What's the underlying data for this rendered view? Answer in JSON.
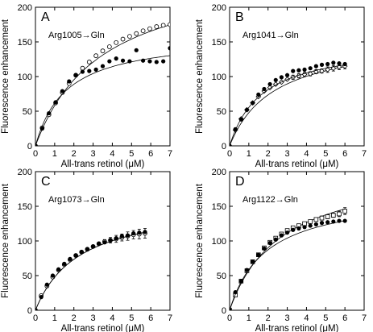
{
  "chart_data": [
    {
      "type": "scatter",
      "panel_letter": "A",
      "mutation_label": "Arg1005→Gln",
      "xlabel": "All-trans retinol (μM)",
      "ylabel": "Fluorescence enhancement",
      "xlim": [
        0,
        7
      ],
      "ylim": [
        0,
        200
      ],
      "xticks": [
        0,
        1,
        2,
        3,
        4,
        5,
        6,
        7
      ],
      "yticks": [
        0,
        50,
        100,
        150,
        200
      ],
      "grid": false,
      "series": [
        {
          "marker": "open-circle",
          "x": [
            0,
            0.35,
            0.7,
            1.05,
            1.4,
            1.75,
            2.1,
            2.45,
            2.8,
            3.15,
            3.5,
            3.85,
            4.2,
            4.55,
            4.9,
            5.25,
            5.6,
            5.95,
            6.3,
            6.65,
            7.0
          ],
          "y": [
            0,
            26,
            45,
            62,
            77,
            90,
            102,
            112,
            121,
            130,
            137,
            143,
            149,
            154,
            158,
            162,
            166,
            169,
            172,
            174,
            175
          ],
          "fit": {
            "type": "hyperbolic",
            "bmax": 262,
            "kd": 3.5
          }
        },
        {
          "marker": "filled-circle",
          "x": [
            0,
            0.35,
            0.7,
            1.05,
            1.4,
            1.75,
            2.1,
            2.45,
            2.8,
            3.15,
            3.5,
            3.85,
            4.2,
            4.55,
            4.9,
            5.25,
            5.6,
            5.95,
            6.3,
            6.65,
            7.0
          ],
          "y": [
            0,
            25,
            47,
            63,
            79,
            93,
            102,
            107,
            108,
            110,
            115,
            122,
            126,
            123,
            122,
            138,
            123,
            122,
            121,
            122,
            141
          ],
          "fit": {
            "type": "hyperbolic",
            "bmax": 160,
            "kd": 1.6
          }
        }
      ]
    },
    {
      "type": "scatter",
      "panel_letter": "B",
      "mutation_label": "Arg1041→Gln",
      "xlabel": "All-trans retinol (μM)",
      "ylabel": "Fluorescence enhancement",
      "xlim": [
        0,
        7
      ],
      "ylim": [
        0,
        200
      ],
      "xticks": [
        0,
        1,
        2,
        3,
        4,
        5,
        6,
        7
      ],
      "yticks": [
        0,
        50,
        100,
        150,
        200
      ],
      "grid": false,
      "series": [
        {
          "marker": "open-diamond",
          "x": [
            0,
            0.3,
            0.6,
            0.9,
            1.2,
            1.5,
            1.8,
            2.1,
            2.4,
            2.7,
            3.0,
            3.3,
            3.6,
            3.9,
            4.2,
            4.5,
            4.8,
            5.1,
            5.4,
            5.7,
            6.0
          ],
          "y": [
            0,
            23,
            39,
            52,
            62,
            71,
            79,
            84,
            89,
            92,
            96,
            99,
            101,
            103,
            104,
            107,
            108,
            110,
            112,
            114,
            115
          ],
          "error": [
            0,
            0,
            0,
            0,
            0,
            0,
            0,
            0,
            0,
            0,
            0,
            3,
            3,
            3,
            3,
            3,
            3,
            4,
            4,
            4,
            4
          ],
          "fit": {
            "type": "hyperbolic",
            "bmax": 158,
            "kd": 2.3
          }
        },
        {
          "marker": "filled-circle",
          "x": [
            0,
            0.3,
            0.6,
            0.9,
            1.2,
            1.5,
            1.8,
            2.1,
            2.4,
            2.7,
            3.0,
            3.3,
            3.6,
            3.9,
            4.2,
            4.5,
            4.8,
            5.1,
            5.4,
            5.7,
            6.0
          ],
          "y": [
            0,
            24,
            38,
            52,
            62,
            74,
            82,
            89,
            95,
            99,
            102,
            108,
            109,
            110,
            112,
            115,
            117,
            118,
            120,
            119,
            118
          ],
          "fit": {
            "type": "hyperbolic",
            "bmax": 150,
            "kd": 1.7
          }
        }
      ]
    },
    {
      "type": "scatter",
      "panel_letter": "C",
      "mutation_label": "Arg1073→Gln",
      "xlabel": "All-trans retinol (μM)",
      "ylabel": "Fluorescence enhancement",
      "xlim": [
        0,
        7
      ],
      "ylim": [
        0,
        200
      ],
      "xticks": [
        0,
        1,
        2,
        3,
        4,
        5,
        6,
        7
      ],
      "yticks": [
        0,
        50,
        100,
        150,
        200
      ],
      "grid": false,
      "series": [
        {
          "marker": "open-circle",
          "x": [
            0,
            0.3,
            0.6,
            0.9,
            1.2,
            1.5,
            1.8,
            2.1,
            2.4,
            2.7,
            3.0,
            3.3,
            3.6,
            3.9,
            4.2,
            4.5,
            4.8,
            5.1,
            5.4,
            5.7
          ],
          "y": [
            0,
            21,
            35,
            48,
            58,
            66,
            73,
            79,
            84,
            88,
            92,
            96,
            99,
            101,
            103,
            105,
            107,
            109,
            110,
            111
          ],
          "error": [
            0,
            0,
            0,
            0,
            0,
            0,
            0,
            0,
            0,
            0,
            0,
            0,
            3,
            4,
            5,
            5,
            6,
            6,
            7,
            7
          ],
          "fit": {
            "type": "hyperbolic",
            "bmax": 158,
            "kd": 2.3
          }
        },
        {
          "marker": "filled-circle",
          "x": [
            0,
            0.3,
            0.6,
            0.9,
            1.2,
            1.5,
            1.8,
            2.1,
            2.4,
            2.7,
            3.0,
            3.3,
            3.6,
            3.9,
            4.2,
            4.5,
            4.8,
            5.1,
            5.4,
            5.7
          ],
          "y": [
            0,
            19,
            37,
            50,
            59,
            67,
            74,
            79,
            84,
            88,
            92,
            96,
            98,
            101,
            104,
            107,
            108,
            111,
            112,
            113
          ],
          "fit": {
            "type": "hyperbolic",
            "bmax": 158,
            "kd": 2.3
          }
        }
      ]
    },
    {
      "type": "scatter",
      "panel_letter": "D",
      "mutation_label": "Arg1122→Gln",
      "xlabel": "All-trans retinol (μM)",
      "ylabel": "Fluorescence enhancement",
      "xlim": [
        0,
        7
      ],
      "ylim": [
        0,
        200
      ],
      "xticks": [
        0,
        1,
        2,
        3,
        4,
        5,
        6,
        7
      ],
      "yticks": [
        0,
        50,
        100,
        150,
        200
      ],
      "grid": false,
      "series": [
        {
          "marker": "open-square",
          "x": [
            0,
            0.3,
            0.6,
            0.9,
            1.2,
            1.5,
            1.8,
            2.1,
            2.4,
            2.7,
            3.0,
            3.3,
            3.6,
            3.9,
            4.2,
            4.5,
            4.8,
            5.1,
            5.4,
            5.7,
            6.0
          ],
          "y": [
            0,
            22,
            42,
            57,
            70,
            80,
            90,
            98,
            104,
            110,
            115,
            119,
            122,
            125,
            128,
            131,
            133,
            135,
            137,
            139,
            143
          ],
          "error": [
            0,
            0,
            0,
            0,
            0,
            0,
            0,
            0,
            0,
            0,
            0,
            0,
            0,
            0,
            0,
            0,
            3,
            3,
            3,
            4,
            5
          ],
          "fit": {
            "type": "hyperbolic",
            "bmax": 212,
            "kd": 2.7
          }
        },
        {
          "marker": "filled-circle",
          "x": [
            0,
            0.3,
            0.6,
            0.9,
            1.2,
            1.5,
            1.8,
            2.1,
            2.4,
            2.7,
            3.0,
            3.3,
            3.6,
            3.9,
            4.2,
            4.5,
            4.8,
            5.1,
            5.4,
            5.7,
            6.0
          ],
          "y": [
            0,
            26,
            42,
            58,
            70,
            80,
            89,
            97,
            102,
            108,
            112,
            116,
            118,
            120,
            122,
            124,
            126,
            127,
            128,
            129,
            129
          ],
          "fit": {
            "type": "hyperbolic",
            "bmax": 170,
            "kd": 1.9
          }
        }
      ]
    }
  ]
}
